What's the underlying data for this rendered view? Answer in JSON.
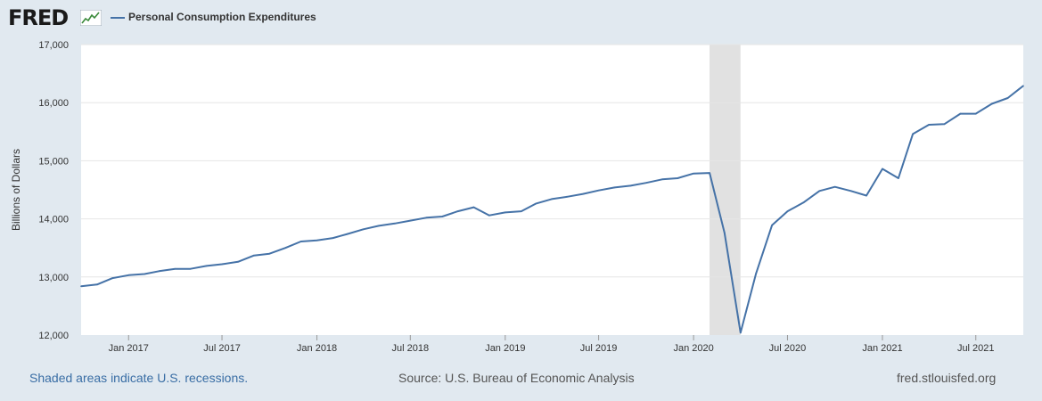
{
  "header": {
    "logo_text": "FRED",
    "logo_icon": "line-chart-icon"
  },
  "footer": {
    "recession_note": "Shaded areas indicate U.S. recessions.",
    "source": "Source: U.S. Bureau of Economic Analysis",
    "site": "fred.stlouisfed.org"
  },
  "colors": {
    "background": "#e1e9f0",
    "plot_background": "#ffffff",
    "series": "#4572a7",
    "recession_shade": "#e1e1e1",
    "grid": "#e6e6e6"
  },
  "chart_data": {
    "type": "line",
    "title": "",
    "xlabel": "",
    "ylabel": "Billions of Dollars",
    "ylim": [
      12000,
      17000
    ],
    "yticks": [
      12000,
      13000,
      14000,
      15000,
      16000,
      17000
    ],
    "ytick_labels": [
      "12,000",
      "13,000",
      "14,000",
      "15,000",
      "16,000",
      "17,000"
    ],
    "xlim": [
      "2016-10-01",
      "2021-10-01"
    ],
    "xticks": [
      "2017-01-01",
      "2017-07-01",
      "2018-01-01",
      "2018-07-01",
      "2019-01-01",
      "2019-07-01",
      "2020-01-01",
      "2020-07-01",
      "2021-01-01",
      "2021-07-01"
    ],
    "xtick_labels": [
      "Jan 2017",
      "Jul 2017",
      "Jan 2018",
      "Jul 2018",
      "Jan 2019",
      "Jul 2019",
      "Jan 2020",
      "Jul 2020",
      "Jan 2021",
      "Jul 2021"
    ],
    "grid": true,
    "legend": "top-left",
    "recessions": [
      {
        "start": "2020-02-01",
        "end": "2020-04-01"
      }
    ],
    "series": [
      {
        "name": "Personal Consumption Expenditures",
        "color": "#4572a7",
        "x": [
          "2016-10-01",
          "2016-11-01",
          "2016-12-01",
          "2017-01-01",
          "2017-02-01",
          "2017-03-01",
          "2017-04-01",
          "2017-05-01",
          "2017-06-01",
          "2017-07-01",
          "2017-08-01",
          "2017-09-01",
          "2017-10-01",
          "2017-11-01",
          "2017-12-01",
          "2018-01-01",
          "2018-02-01",
          "2018-03-01",
          "2018-04-01",
          "2018-05-01",
          "2018-06-01",
          "2018-07-01",
          "2018-08-01",
          "2018-09-01",
          "2018-10-01",
          "2018-11-01",
          "2018-12-01",
          "2019-01-01",
          "2019-02-01",
          "2019-03-01",
          "2019-04-01",
          "2019-05-01",
          "2019-06-01",
          "2019-07-01",
          "2019-08-01",
          "2019-09-01",
          "2019-10-01",
          "2019-11-01",
          "2019-12-01",
          "2020-01-01",
          "2020-02-01",
          "2020-03-01",
          "2020-04-01",
          "2020-05-01",
          "2020-06-01",
          "2020-07-01",
          "2020-08-01",
          "2020-09-01",
          "2020-10-01",
          "2020-11-01",
          "2020-12-01",
          "2021-01-01",
          "2021-02-01",
          "2021-03-01",
          "2021-04-01",
          "2021-05-01",
          "2021-06-01",
          "2021-07-01",
          "2021-08-01",
          "2021-09-01",
          "2021-10-01"
        ],
        "values": [
          12840,
          12870,
          12980,
          13030,
          13050,
          13100,
          13140,
          13140,
          13190,
          13220,
          13260,
          13370,
          13400,
          13500,
          13610,
          13630,
          13670,
          13740,
          13820,
          13880,
          13920,
          13970,
          14020,
          14040,
          14130,
          14200,
          14060,
          14110,
          14130,
          14260,
          14340,
          14380,
          14430,
          14490,
          14540,
          14570,
          14620,
          14680,
          14700,
          14780,
          14790,
          13760,
          12040,
          13060,
          13890,
          14130,
          14280,
          14480,
          14550,
          14480,
          14400,
          14860,
          14700,
          15460,
          15620,
          15630,
          15810,
          15810,
          15980,
          16080,
          16290
        ]
      }
    ]
  }
}
